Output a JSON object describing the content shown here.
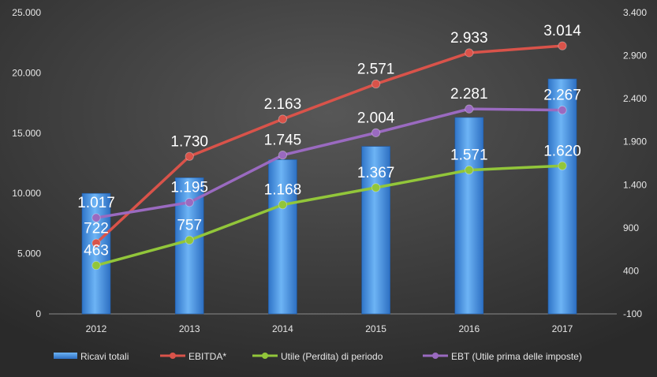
{
  "chart_data": {
    "type": "bar+line",
    "categories": [
      "2012",
      "2013",
      "2014",
      "2015",
      "2016",
      "2017"
    ],
    "y_left": {
      "ticks": [
        "0",
        "5.000",
        "10.000",
        "15.000",
        "20.000",
        "25.000"
      ],
      "tick_values": [
        0,
        5000,
        10000,
        15000,
        20000,
        25000
      ],
      "range": [
        0,
        25000
      ]
    },
    "y_right": {
      "ticks": [
        "-100",
        "400",
        "900",
        "1.400",
        "1.900",
        "2.400",
        "2.900",
        "3.400"
      ],
      "tick_values": [
        -100,
        400,
        900,
        1400,
        1900,
        2400,
        2900,
        3400
      ],
      "range": [
        -100,
        3400
      ]
    },
    "bars": {
      "name": "Ricavi totali",
      "axis": "left",
      "values": [
        10000,
        11300,
        12800,
        13900,
        16300,
        19500
      ],
      "color": "#3f8fe0"
    },
    "series": [
      {
        "name": "EBITDA*",
        "axis": "right",
        "values": [
          722,
          1730,
          2163,
          2571,
          2933,
          3014
        ],
        "labels": [
          "722",
          "1.730",
          "2.163",
          "2.571",
          "2.933",
          "3.014"
        ],
        "color": "#d9534a"
      },
      {
        "name": "Utile (Perdita) di periodo",
        "axis": "right",
        "values": [
          463,
          757,
          1168,
          1367,
          1571,
          1620
        ],
        "labels": [
          "463",
          "757",
          "1.168",
          "1.367",
          "1.571",
          "1.620"
        ],
        "color": "#92c63a"
      },
      {
        "name": "EBT (Utile prima delle imposte)",
        "axis": "right",
        "values": [
          1017,
          1195,
          1745,
          2004,
          2281,
          2267
        ],
        "labels": [
          "1.017",
          "1.195",
          "1.745",
          "2.004",
          "2.281",
          "2.267"
        ],
        "color": "#9a6ac0"
      }
    ],
    "legend_position": "bottom",
    "grid": false,
    "background": "#3a3a3a"
  }
}
